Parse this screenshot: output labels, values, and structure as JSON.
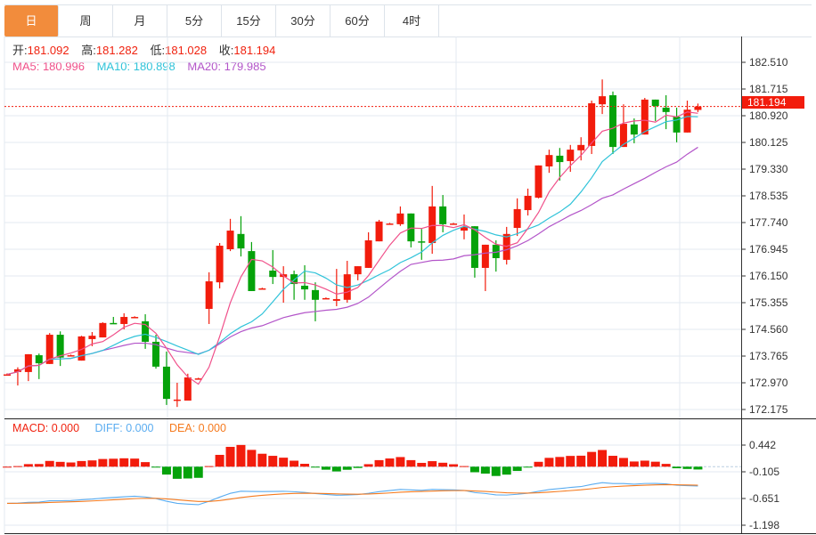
{
  "tabs": [
    {
      "label": "日",
      "active": true
    },
    {
      "label": "周"
    },
    {
      "label": "月"
    },
    {
      "label": "5分"
    },
    {
      "label": "15分"
    },
    {
      "label": "30分"
    },
    {
      "label": "60分"
    },
    {
      "label": "4时"
    }
  ],
  "ohlc_info": {
    "open_label": "开:",
    "open": "181.092",
    "high_label": "高:",
    "high": "181.282",
    "low_label": "低:",
    "low": "181.028",
    "close_label": "收:",
    "close": "181.194"
  },
  "ma_info": {
    "ma5": "MA5: 180.996",
    "ma10": "MA10: 180.898",
    "ma20": "MA20: 179.985"
  },
  "macd_info": {
    "macd": "MACD: 0.000",
    "diff": "DIFF: 0.000",
    "dea": "DEA: 0.000"
  },
  "current_price": "181.194",
  "colors": {
    "up": "#f21c0c",
    "down": "#05a20a",
    "ma5": "#f0508a",
    "ma10": "#2fc3d9",
    "ma20": "#b355c9",
    "diff": "#5aacf0",
    "dea": "#f57a1e",
    "accent": "#f28c3c"
  },
  "chart_data": {
    "type": "candlestick",
    "price_axis": {
      "ticks": [
        "182.510",
        "181.715",
        "180.920",
        "180.125",
        "179.330",
        "178.535",
        "177.740",
        "176.945",
        "176.150",
        "175.355",
        "174.560",
        "173.765",
        "172.970",
        "172.175"
      ],
      "range": [
        172.175,
        182.51
      ]
    },
    "macd_axis": {
      "ticks": [
        "0.442",
        "-0.105",
        "-0.651",
        "-1.198"
      ],
      "range": [
        -1.198,
        0.442
      ]
    },
    "candles": [
      [
        173.22,
        173.25,
        173.19,
        173.22
      ],
      [
        173.29,
        173.43,
        172.89,
        173.37
      ],
      [
        173.29,
        173.82,
        173.02,
        173.82
      ],
      [
        173.79,
        173.84,
        173.08,
        173.55
      ],
      [
        173.53,
        174.45,
        173.53,
        174.4
      ],
      [
        174.4,
        174.5,
        173.47,
        173.72
      ],
      [
        173.79,
        173.81,
        173.77,
        173.79
      ],
      [
        173.63,
        174.37,
        173.63,
        174.35
      ],
      [
        174.27,
        174.48,
        174.06,
        174.37
      ],
      [
        174.32,
        174.77,
        174.32,
        174.75
      ],
      [
        174.75,
        174.93,
        174.72,
        174.72
      ],
      [
        174.72,
        175.04,
        174.56,
        174.93
      ],
      [
        174.93,
        174.95,
        174.91,
        174.93
      ],
      [
        174.8,
        175.01,
        173.98,
        174.19
      ],
      [
        174.19,
        174.4,
        173.39,
        173.45
      ],
      [
        173.45,
        173.9,
        172.31,
        172.49
      ],
      [
        172.44,
        172.97,
        172.25,
        172.47
      ],
      [
        172.44,
        173.24,
        172.44,
        173.13
      ],
      [
        173.1,
        173.12,
        173.08,
        173.1
      ],
      [
        175.17,
        176.26,
        174.72,
        175.99
      ],
      [
        175.96,
        177.13,
        175.78,
        177.05
      ],
      [
        176.945,
        177.85,
        176.89,
        177.5
      ],
      [
        177.4,
        177.93,
        176.73,
        176.97
      ],
      [
        176.89,
        177.16,
        175.7,
        175.7
      ],
      [
        175.78,
        175.8,
        175.76,
        175.78
      ],
      [
        176.31,
        176.92,
        175.91,
        176.12
      ],
      [
        176.12,
        176.44,
        175.355,
        176.2
      ],
      [
        176.2,
        176.31,
        175.44,
        175.91
      ],
      [
        175.86,
        176.47,
        175.44,
        175.75
      ],
      [
        175.73,
        175.96,
        174.8,
        175.44
      ],
      [
        175.49,
        175.51,
        175.47,
        175.49
      ],
      [
        175.41,
        176.36,
        175.25,
        175.46
      ],
      [
        175.44,
        176.6,
        175.355,
        176.2
      ],
      [
        176.2,
        176.44,
        176.02,
        176.44
      ],
      [
        176.39,
        177.45,
        176.39,
        177.21
      ],
      [
        177.18,
        177.82,
        177.18,
        177.77
      ],
      [
        177.71,
        177.73,
        177.69,
        177.71
      ],
      [
        177.69,
        178.22,
        177.64,
        178.01
      ],
      [
        178.01,
        178.01,
        177.0,
        177.18
      ],
      [
        177.18,
        177.55,
        176.63,
        177.15
      ],
      [
        177.13,
        178.83,
        176.81,
        178.22
      ],
      [
        178.22,
        178.56,
        177.45,
        177.69
      ],
      [
        177.71,
        177.73,
        177.69,
        177.71
      ],
      [
        177.5,
        177.98,
        177.24,
        177.61
      ],
      [
        177.63,
        177.63,
        176.1,
        176.39
      ],
      [
        176.39,
        177.08,
        175.7,
        177.08
      ],
      [
        177.08,
        177.21,
        176.28,
        176.68
      ],
      [
        176.63,
        177.61,
        176.49,
        177.4
      ],
      [
        177.58,
        178.46,
        177.34,
        178.14
      ],
      [
        178.11,
        178.75,
        177.95,
        178.535
      ],
      [
        178.48,
        179.44,
        178.46,
        179.44
      ],
      [
        179.41,
        179.91,
        179.22,
        179.75
      ],
      [
        179.73,
        179.96,
        178.99,
        179.54
      ],
      [
        179.57,
        180.05,
        179.25,
        179.91
      ],
      [
        179.89,
        180.28,
        179.59,
        180.05
      ],
      [
        180.02,
        181.37,
        179.78,
        181.29
      ],
      [
        181.26,
        182.0,
        180.97,
        181.5
      ],
      [
        181.53,
        181.64,
        179.78,
        179.99
      ],
      [
        179.99,
        181.26,
        179.99,
        180.68
      ],
      [
        180.66,
        180.84,
        180.1,
        180.36
      ],
      [
        180.36,
        181.45,
        180.36,
        181.4
      ],
      [
        181.4,
        181.4,
        180.76,
        181.21
      ],
      [
        181.16,
        181.53,
        180.52,
        181.03
      ],
      [
        180.89,
        181.16,
        180.13,
        180.42
      ],
      [
        180.42,
        181.37,
        180.42,
        181.1
      ],
      [
        181.092,
        181.282,
        181.028,
        181.194
      ]
    ]
  }
}
